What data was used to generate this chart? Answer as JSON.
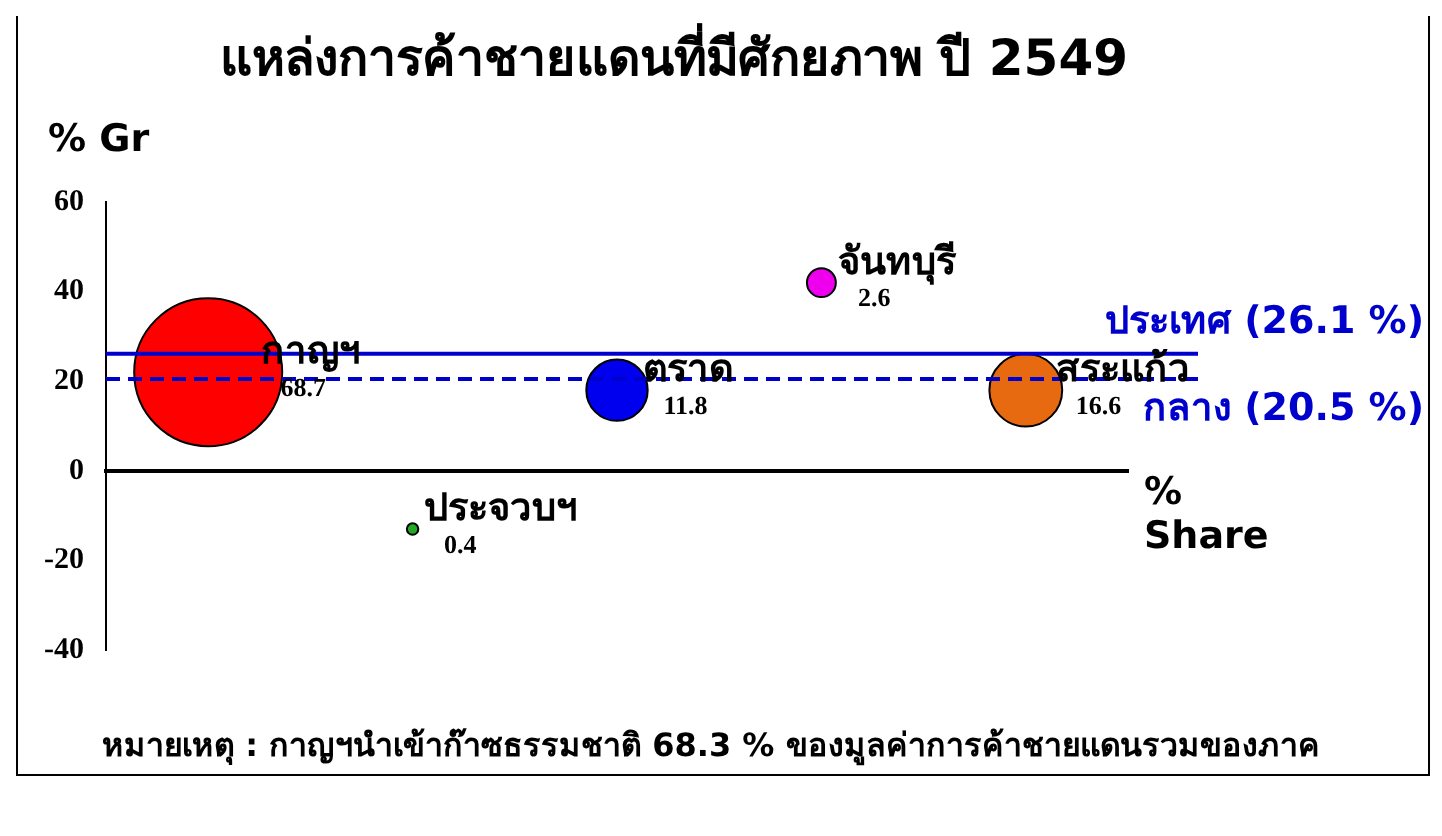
{
  "chart_data": {
    "type": "bubble",
    "title": "แหล่งการค้าชายแดนที่มีศักยภาพ ปี 2549",
    "ylabel": "% Gr",
    "xlabel": "% Share",
    "categories": [
      null,
      null,
      null,
      null,
      null
    ],
    "series": [
      {
        "name": "กาญฯ",
        "color": "#ff0000",
        "values": [
          22,
          null,
          null,
          null,
          null
        ],
        "sizes": [
          1,
          null,
          null,
          null,
          null
        ]
      },
      {
        "name": "ประจวบฯ",
        "color": "#22aa22",
        "values": [
          null,
          -13,
          null,
          null,
          null
        ],
        "sizes": [
          null,
          0.006,
          null,
          null,
          null
        ]
      },
      {
        "name": "ตราด",
        "color": "#0000ee",
        "values": [
          null,
          null,
          18,
          null,
          null
        ],
        "sizes": [
          null,
          null,
          0.172,
          null,
          null
        ]
      },
      {
        "name": "จันทบุรี",
        "color": "#ee00ee",
        "values": [
          null,
          null,
          null,
          42,
          null
        ],
        "sizes": [
          null,
          null,
          null,
          0.038,
          null
        ]
      },
      {
        "name": "สระแก้ว",
        "color": "#e86a10",
        "values": [
          null,
          null,
          null,
          null,
          18
        ],
        "sizes": [
          null,
          null,
          null,
          null,
          0.242
        ]
      }
    ],
    "annotations": [
      "68.7",
      "0.4",
      "11.8",
      "2.6",
      "16.6",
      "หมายเหตุ : กาญฯนำเข้าก๊าซธรรมชาติ 68.3 % ของมูลค่าการค้าชายแดนรวมของภาค"
    ],
    "ylim": [
      -40,
      60
    ],
    "yticks": [
      -40,
      -20,
      0,
      20,
      40,
      60
    ],
    "tick_labels": "y",
    "ref_lines": [
      {
        "axis": "y",
        "value": 26.1,
        "label": "ประเทศ (26.1 %)",
        "color": "#0000cc",
        "line_style": "solid"
      },
      {
        "axis": "y",
        "value": 20.5,
        "label": "กลาง (20.5 %)",
        "color": "#0000cc",
        "line_style": "dashed"
      }
    ]
  }
}
